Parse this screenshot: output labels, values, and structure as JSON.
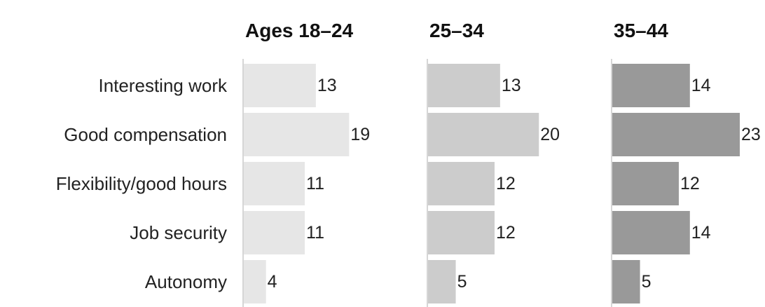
{
  "chart_data": {
    "type": "bar",
    "orientation": "horizontal",
    "categories": [
      "Interesting work",
      "Good compensation",
      "Flexibility/good hours",
      "Job security",
      "Autonomy"
    ],
    "series": [
      {
        "name": "Ages 18–24",
        "color": "#e6e6e6",
        "values": [
          13,
          19,
          11,
          11,
          4
        ]
      },
      {
        "name": "25–34",
        "color": "#cccccc",
        "values": [
          13,
          20,
          12,
          12,
          5
        ]
      },
      {
        "name": "35–44",
        "color": "#999999",
        "values": [
          14,
          23,
          12,
          14,
          5
        ]
      }
    ],
    "xlim": [
      0,
      23
    ],
    "grid": false,
    "legend": "none"
  }
}
